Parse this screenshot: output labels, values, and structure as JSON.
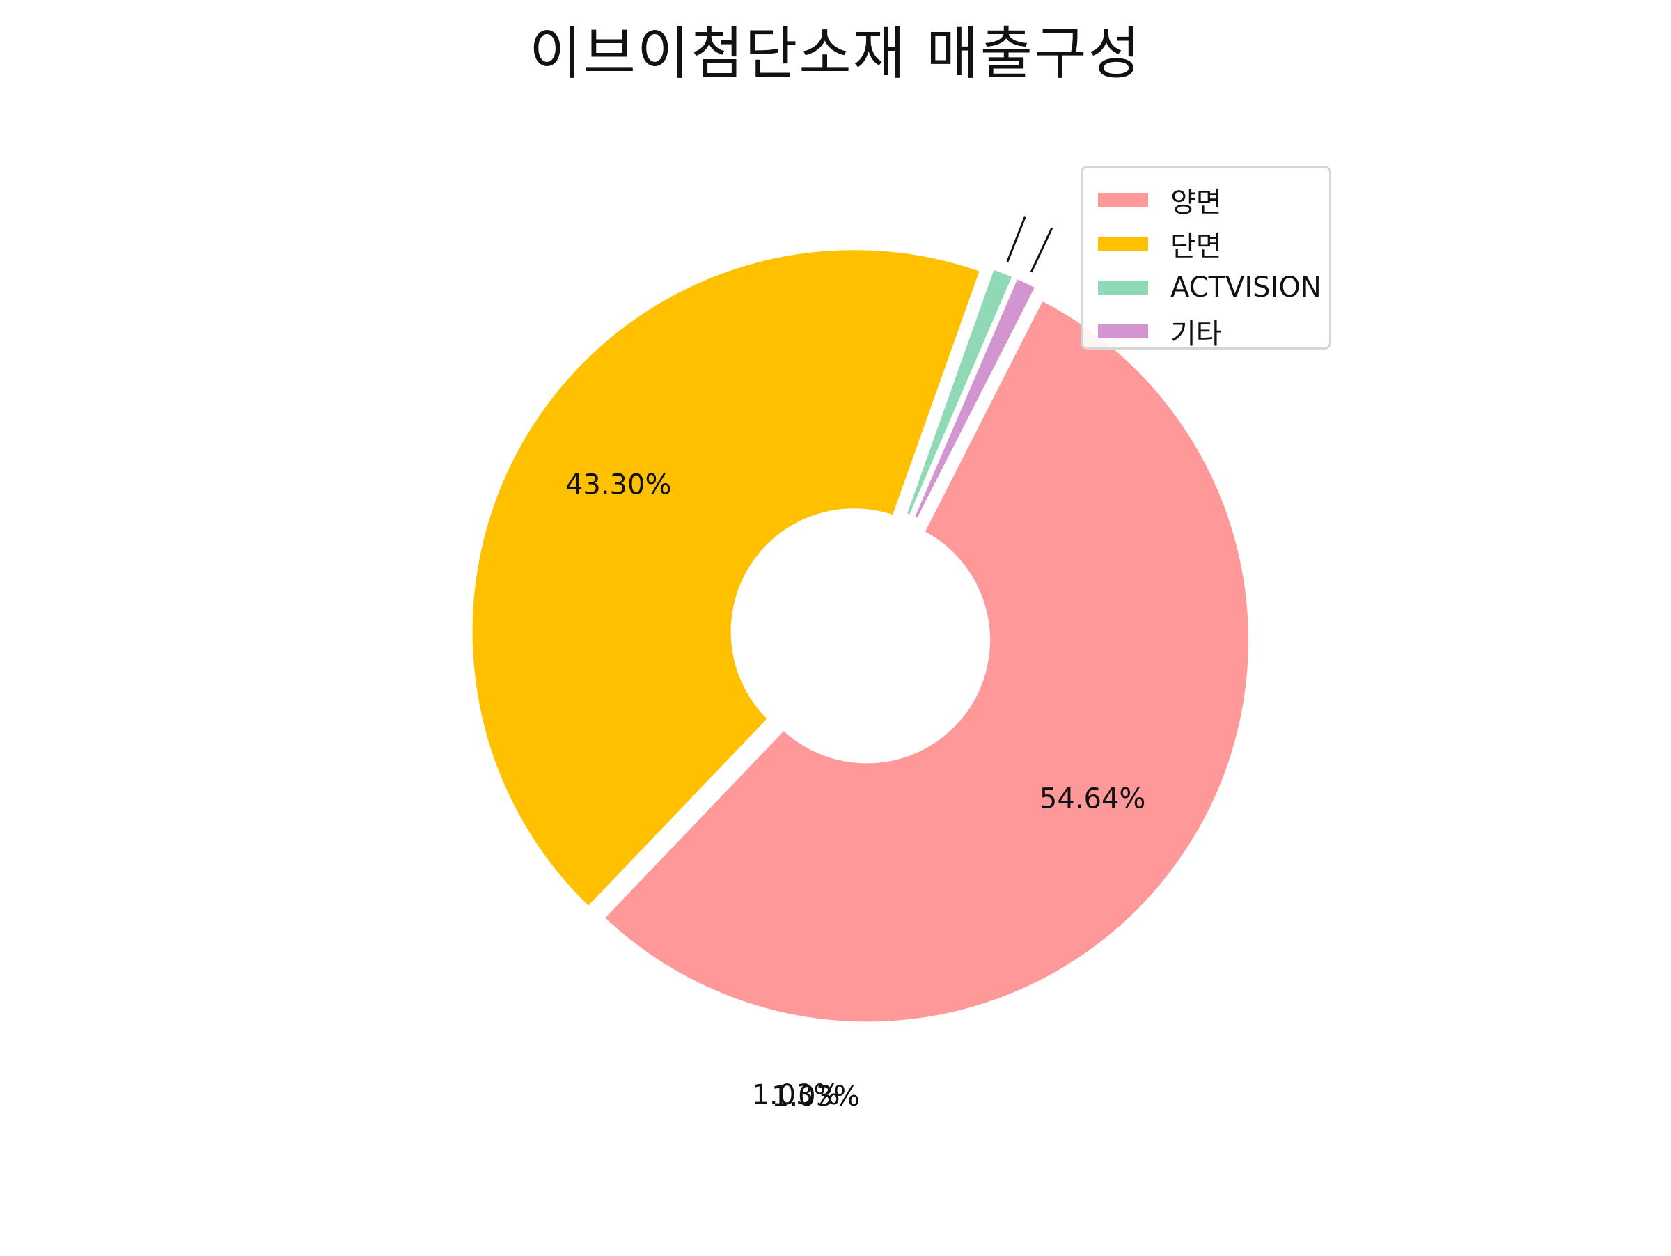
{
  "chart_data": {
    "type": "pie",
    "title": "이브이첨단소재 매출구성",
    "categories": [
      "양면",
      "단면",
      "ACTVISION",
      "기타"
    ],
    "values": [
      54.64,
      43.3,
      1.03,
      1.03
    ],
    "labels": [
      "54.64%",
      "43.30%",
      "1.03%",
      "1.03%"
    ],
    "colors": [
      "#ff9999",
      "#ffc000",
      "#8fd9b6",
      "#d395d0"
    ],
    "donut": true,
    "legend_position": "top-right"
  }
}
